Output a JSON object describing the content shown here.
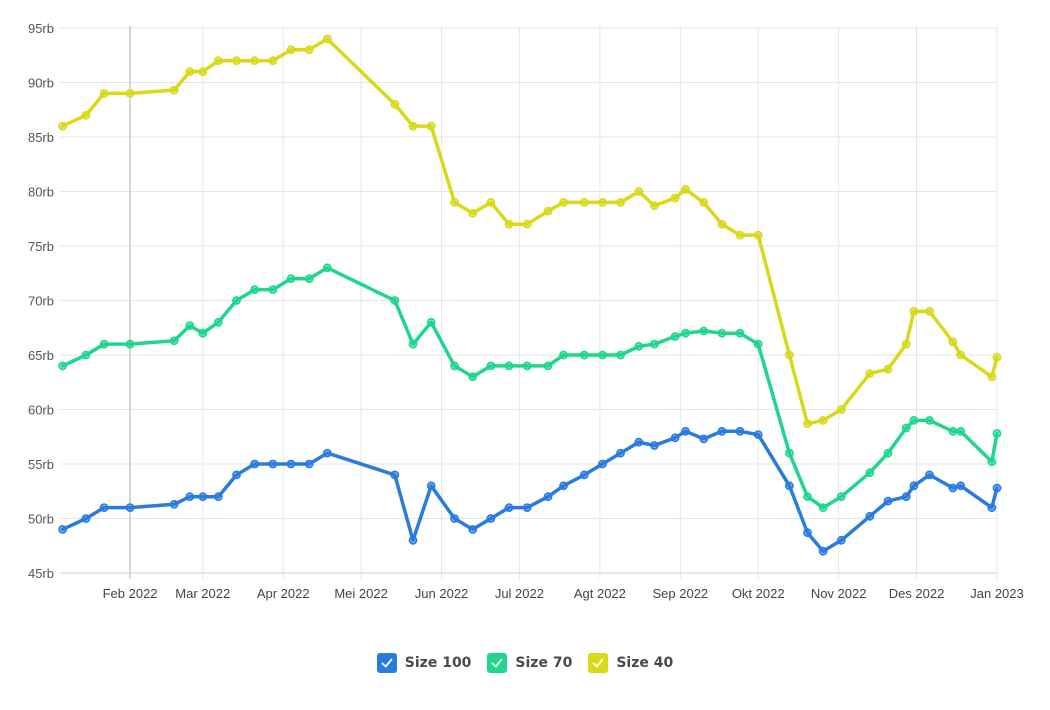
{
  "chart_data": {
    "type": "line",
    "title": "",
    "xlabel": "",
    "ylabel": "",
    "ylim": [
      45,
      95
    ],
    "y_ticks": [
      {
        "value": 45,
        "label": "45rb"
      },
      {
        "value": 50,
        "label": "50rb"
      },
      {
        "value": 55,
        "label": "55rb"
      },
      {
        "value": 60,
        "label": "60rb"
      },
      {
        "value": 65,
        "label": "65rb"
      },
      {
        "value": 70,
        "label": "70rb"
      },
      {
        "value": 75,
        "label": "75rb"
      },
      {
        "value": 80,
        "label": "80rb"
      },
      {
        "value": 85,
        "label": "85rb"
      },
      {
        "value": 90,
        "label": "90rb"
      },
      {
        "value": 95,
        "label": "95rb"
      }
    ],
    "xlim": [
      "2022-01-05",
      "2023-01-01"
    ],
    "x_ticks": [
      {
        "date": "2022-02-01",
        "label": "Feb 2022"
      },
      {
        "date": "2022-03-01",
        "label": "Mar 2022"
      },
      {
        "date": "2022-04-01",
        "label": "Apr 2022"
      },
      {
        "date": "2022-05-01",
        "label": "Mei 2022"
      },
      {
        "date": "2022-06-01",
        "label": "Jun 2022"
      },
      {
        "date": "2022-07-01",
        "label": "Jul 2022"
      },
      {
        "date": "2022-08-01",
        "label": "Agt 2022"
      },
      {
        "date": "2022-09-01",
        "label": "Sep 2022"
      },
      {
        "date": "2022-10-01",
        "label": "Okt 2022"
      },
      {
        "date": "2022-11-01",
        "label": "Nov 2022"
      },
      {
        "date": "2022-12-01",
        "label": "Des 2022"
      },
      {
        "date": "2023-01-01",
        "label": "Jan 2023"
      }
    ],
    "grid": true,
    "legend_position": "bottom-center",
    "x": [
      "2022-01-06",
      "2022-01-15",
      "2022-01-22",
      "2022-02-01",
      "2022-02-18",
      "2022-02-24",
      "2022-03-01",
      "2022-03-07",
      "2022-03-14",
      "2022-03-21",
      "2022-03-28",
      "2022-04-01",
      "2022-04-07",
      "2022-04-14",
      "2022-04-21",
      "2022-05-26",
      "2022-05-26",
      "2022-06-01",
      "2022-06-07",
      "2022-06-14",
      "2022-06-21",
      "2022-06-28",
      "2022-07-05",
      "2022-07-12",
      "2022-07-19",
      "2022-07-26",
      "2022-08-02",
      "2022-08-09",
      "2022-08-16",
      "2022-08-23",
      "2022-08-30",
      "2022-09-06",
      "2022-09-13",
      "2022-09-20",
      "2022-09-27",
      "2022-10-04",
      "2022-10-11",
      "2022-10-18",
      "2022-10-25",
      "2022-11-01",
      "2022-11-08",
      "2022-11-15",
      "2022-11-22",
      "2022-11-29",
      "2022-12-06",
      "2022-12-13",
      "2022-12-20",
      "2022-12-27",
      "2023-01-01"
    ],
    "series": [
      {
        "name": "Size 100",
        "color": "#2a7be0",
        "points": [
          [
            "2022-01-06",
            49
          ],
          [
            "2022-01-15",
            50
          ],
          [
            "2022-01-22",
            51
          ],
          [
            "2022-02-01",
            51
          ],
          [
            "2022-02-18",
            51.3
          ],
          [
            "2022-02-24",
            52
          ],
          [
            "2022-03-01",
            52
          ],
          [
            "2022-03-07",
            52
          ],
          [
            "2022-03-14",
            54
          ],
          [
            "2022-03-21",
            55
          ],
          [
            "2022-03-28",
            55
          ],
          [
            "2022-04-04",
            55
          ],
          [
            "2022-04-11",
            55
          ],
          [
            "2022-04-18",
            56
          ],
          [
            "2022-05-14",
            54
          ],
          [
            "2022-05-21",
            48
          ],
          [
            "2022-05-28",
            53
          ],
          [
            "2022-06-06",
            50
          ],
          [
            "2022-06-13",
            49
          ],
          [
            "2022-06-20",
            50
          ],
          [
            "2022-06-27",
            51
          ],
          [
            "2022-07-04",
            51
          ],
          [
            "2022-07-12",
            52
          ],
          [
            "2022-07-18",
            53
          ],
          [
            "2022-07-26",
            54
          ],
          [
            "2022-08-02",
            55
          ],
          [
            "2022-08-09",
            56
          ],
          [
            "2022-08-16",
            57
          ],
          [
            "2022-08-22",
            56.7
          ],
          [
            "2022-08-30",
            57.4
          ],
          [
            "2022-09-03",
            58
          ],
          [
            "2022-09-10",
            57.3
          ],
          [
            "2022-09-17",
            58
          ],
          [
            "2022-09-24",
            58
          ],
          [
            "2022-10-01",
            57.7
          ],
          [
            "2022-10-13",
            53
          ],
          [
            "2022-10-20",
            48.7
          ],
          [
            "2022-10-26",
            47
          ],
          [
            "2022-11-02",
            48
          ],
          [
            "2022-11-13",
            50.2
          ],
          [
            "2022-11-20",
            51.6
          ],
          [
            "2022-11-27",
            52
          ],
          [
            "2022-11-30",
            53
          ],
          [
            "2022-12-06",
            54
          ],
          [
            "2022-12-15",
            52.8
          ],
          [
            "2022-12-18",
            53
          ],
          [
            "2022-12-30",
            51
          ],
          [
            "2023-01-01",
            52.8
          ]
        ]
      },
      {
        "name": "Size 70",
        "color": "#1fd68e",
        "points": [
          [
            "2022-01-06",
            64
          ],
          [
            "2022-01-15",
            65
          ],
          [
            "2022-01-22",
            66
          ],
          [
            "2022-02-01",
            66
          ],
          [
            "2022-02-18",
            66.3
          ],
          [
            "2022-02-24",
            67.7
          ],
          [
            "2022-03-01",
            67
          ],
          [
            "2022-03-07",
            68
          ],
          [
            "2022-03-14",
            70
          ],
          [
            "2022-03-21",
            71
          ],
          [
            "2022-03-28",
            71
          ],
          [
            "2022-04-04",
            72
          ],
          [
            "2022-04-11",
            72
          ],
          [
            "2022-04-18",
            73
          ],
          [
            "2022-05-14",
            70
          ],
          [
            "2022-05-21",
            66
          ],
          [
            "2022-05-28",
            68
          ],
          [
            "2022-06-06",
            64
          ],
          [
            "2022-06-13",
            63
          ],
          [
            "2022-06-20",
            64
          ],
          [
            "2022-06-27",
            64
          ],
          [
            "2022-07-04",
            64
          ],
          [
            "2022-07-12",
            64
          ],
          [
            "2022-07-18",
            65
          ],
          [
            "2022-07-26",
            65
          ],
          [
            "2022-08-02",
            65
          ],
          [
            "2022-08-09",
            65
          ],
          [
            "2022-08-16",
            65.8
          ],
          [
            "2022-08-22",
            66
          ],
          [
            "2022-08-30",
            66.7
          ],
          [
            "2022-09-03",
            67
          ],
          [
            "2022-09-10",
            67.2
          ],
          [
            "2022-09-17",
            67
          ],
          [
            "2022-09-24",
            67
          ],
          [
            "2022-10-01",
            66
          ],
          [
            "2022-10-13",
            56
          ],
          [
            "2022-10-20",
            52
          ],
          [
            "2022-10-26",
            51
          ],
          [
            "2022-11-02",
            52
          ],
          [
            "2022-11-13",
            54.2
          ],
          [
            "2022-11-20",
            56
          ],
          [
            "2022-11-27",
            58.3
          ],
          [
            "2022-11-30",
            59
          ],
          [
            "2022-12-06",
            59
          ],
          [
            "2022-12-15",
            58
          ],
          [
            "2022-12-18",
            58
          ],
          [
            "2022-12-30",
            55.2
          ],
          [
            "2023-01-01",
            57.8
          ]
        ]
      },
      {
        "name": "Size 40",
        "color": "#d9d91a",
        "points": [
          [
            "2022-01-06",
            86
          ],
          [
            "2022-01-15",
            87
          ],
          [
            "2022-01-22",
            89
          ],
          [
            "2022-02-01",
            89
          ],
          [
            "2022-02-18",
            89.3
          ],
          [
            "2022-02-24",
            91
          ],
          [
            "2022-03-01",
            91
          ],
          [
            "2022-03-07",
            92
          ],
          [
            "2022-03-14",
            92
          ],
          [
            "2022-03-21",
            92
          ],
          [
            "2022-03-28",
            92
          ],
          [
            "2022-04-04",
            93
          ],
          [
            "2022-04-11",
            93
          ],
          [
            "2022-04-18",
            94
          ],
          [
            "2022-05-14",
            88
          ],
          [
            "2022-05-21",
            86
          ],
          [
            "2022-05-28",
            86
          ],
          [
            "2022-06-06",
            79
          ],
          [
            "2022-06-13",
            78
          ],
          [
            "2022-06-20",
            79
          ],
          [
            "2022-06-27",
            77
          ],
          [
            "2022-07-04",
            77
          ],
          [
            "2022-07-12",
            78.2
          ],
          [
            "2022-07-18",
            79
          ],
          [
            "2022-07-26",
            79
          ],
          [
            "2022-08-02",
            79
          ],
          [
            "2022-08-09",
            79
          ],
          [
            "2022-08-16",
            80
          ],
          [
            "2022-08-22",
            78.7
          ],
          [
            "2022-08-30",
            79.4
          ],
          [
            "2022-09-03",
            80.2
          ],
          [
            "2022-09-10",
            79
          ],
          [
            "2022-09-17",
            77
          ],
          [
            "2022-09-24",
            76
          ],
          [
            "2022-10-01",
            76
          ],
          [
            "2022-10-13",
            65
          ],
          [
            "2022-10-20",
            58.7
          ],
          [
            "2022-10-26",
            59
          ],
          [
            "2022-11-02",
            60
          ],
          [
            "2022-11-13",
            63.3
          ],
          [
            "2022-11-20",
            63.7
          ],
          [
            "2022-11-27",
            66
          ],
          [
            "2022-11-30",
            69
          ],
          [
            "2022-12-06",
            69
          ],
          [
            "2022-12-15",
            66.2
          ],
          [
            "2022-12-18",
            65
          ],
          [
            "2022-12-30",
            63
          ],
          [
            "2023-01-01",
            64.8
          ]
        ]
      }
    ]
  },
  "legend": {
    "items": [
      {
        "label": "Size 100",
        "color": "#2a7be0",
        "checked": true
      },
      {
        "label": "Size 70",
        "color": "#1fd68e",
        "checked": true
      },
      {
        "label": "Size 40",
        "color": "#d9d91a",
        "checked": true
      }
    ]
  }
}
